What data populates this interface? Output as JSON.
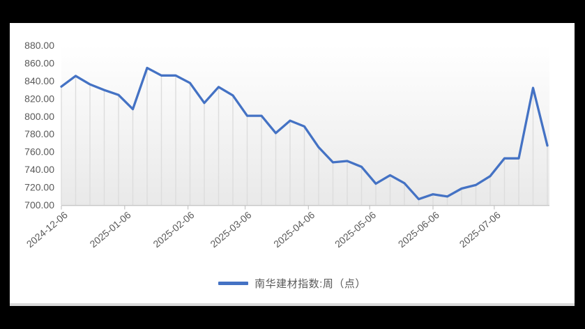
{
  "window": {
    "background": "#000000",
    "panel_background": "#ffffff"
  },
  "chart_data": {
    "type": "line",
    "title": "",
    "xlabel": "",
    "ylabel": "",
    "ylim": [
      700,
      880
    ],
    "y_tick_labels": [
      "880.00",
      "860.00",
      "840.00",
      "820.00",
      "800.00",
      "780.00",
      "760.00",
      "740.00",
      "720.00",
      "700.00"
    ],
    "x_tick_labels": [
      "2024-12-06",
      "2025-01-06",
      "2025-02-06",
      "2025-03-06",
      "2025-04-06",
      "2025-05-06",
      "2025-06-06",
      "2025-07-06"
    ],
    "x_tick_day_offsets": [
      0,
      31,
      62,
      90,
      121,
      151,
      182,
      212
    ],
    "x_total_days": 238,
    "grid": "vertical-drop-lines",
    "legend_position": "bottom-center",
    "axis_color": "#c8c8c8",
    "droplines_color": "#dddddd",
    "label_color": "#595959",
    "plot_gradient_top": "#ffffff",
    "plot_gradient_bottom": "#e9e9e9",
    "series": [
      {
        "name": "南华建材指数:周（点）",
        "color": "#4472C4",
        "dates": [
          "2024-12-06",
          "2024-12-13",
          "2024-12-20",
          "2024-12-27",
          "2025-01-03",
          "2025-01-10",
          "2025-01-17",
          "2025-01-24",
          "2025-01-31",
          "2025-02-07",
          "2025-02-14",
          "2025-02-21",
          "2025-02-28",
          "2025-03-07",
          "2025-03-14",
          "2025-03-21",
          "2025-03-28",
          "2025-04-04",
          "2025-04-11",
          "2025-04-18",
          "2025-04-25",
          "2025-05-02",
          "2025-05-09",
          "2025-05-16",
          "2025-05-23",
          "2025-05-30",
          "2025-06-06",
          "2025-06-13",
          "2025-06-20",
          "2025-06-27",
          "2025-07-04",
          "2025-07-11",
          "2025-07-18",
          "2025-07-25",
          "2025-08-01"
        ],
        "values": [
          833.5,
          845.5,
          836,
          829.5,
          824,
          808,
          854.5,
          846,
          846,
          837.5,
          815,
          833,
          823.5,
          800.5,
          800.5,
          781,
          795,
          788.5,
          765,
          748,
          749.5,
          743,
          724,
          733.5,
          724.5,
          706.5,
          712,
          709.5,
          718.5,
          722.5,
          732.5,
          752.5,
          752.5,
          832,
          767
        ]
      }
    ]
  },
  "legend": {
    "label": "南华建材指数:周（点）",
    "marker_color": "#4472C4"
  }
}
